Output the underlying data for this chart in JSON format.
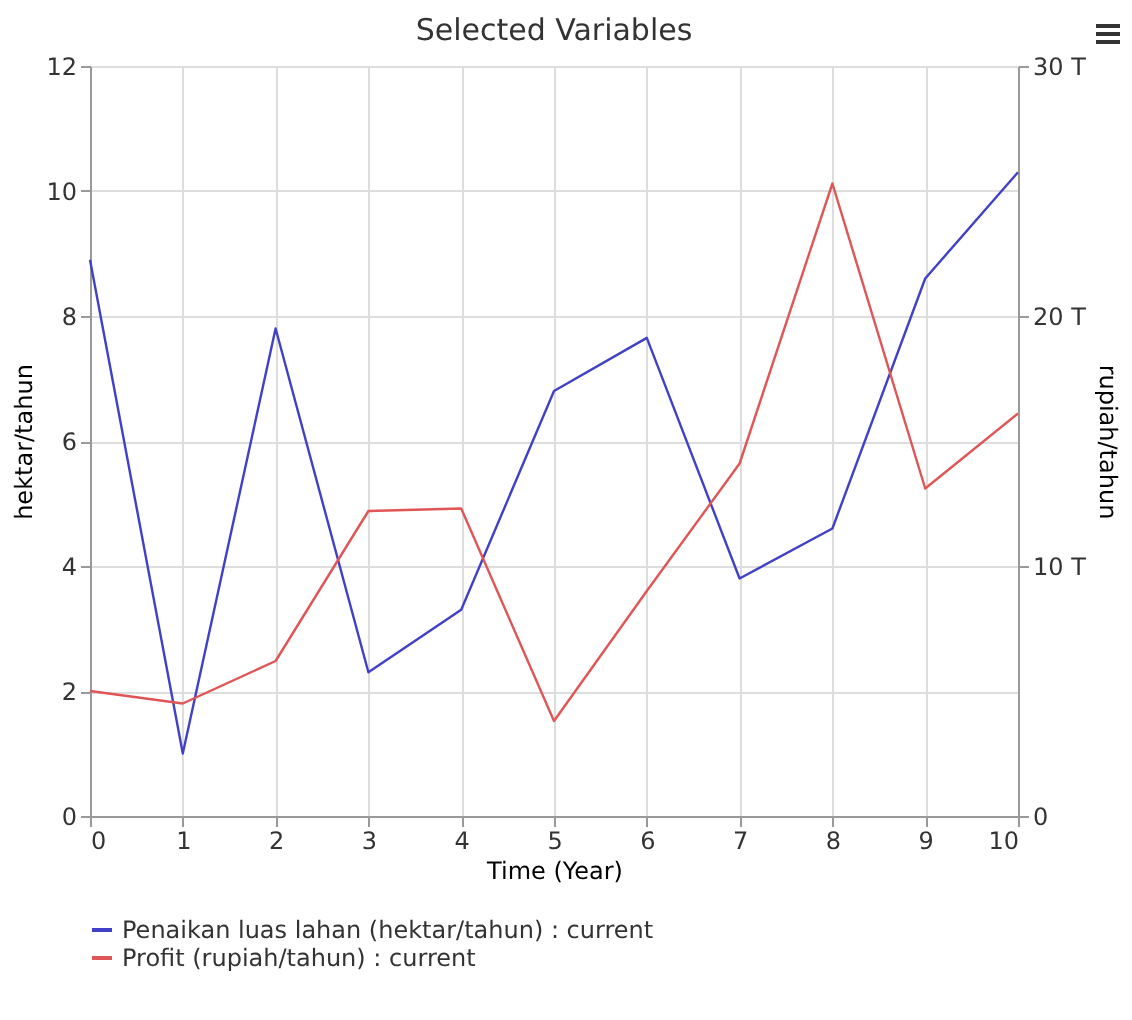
{
  "chart_data": {
    "type": "line",
    "title": "Selected Variables",
    "xlabel": "Time (Year)",
    "ylabel": "hektar/tahun",
    "y2label": "rupiah/tahun",
    "x": [
      0,
      1,
      2,
      3,
      4,
      5,
      6,
      7,
      8,
      9,
      10
    ],
    "series": [
      {
        "name": "Penaikan luas lahan (hektar/tahun) : current",
        "color": "#4040c8",
        "values": [
          8.9,
          1.0,
          7.8,
          2.3,
          3.3,
          6.8,
          7.65,
          3.8,
          4.6,
          8.6,
          10.3
        ]
      },
      {
        "name": "Profit (rupiah/tahun) : current",
        "color": "#e05555",
        "axis": "y2",
        "values": [
          5,
          4.5,
          6.2,
          12.2,
          12.3,
          3.8,
          9,
          14.1,
          25.3,
          13.1,
          16.1
        ]
      }
    ],
    "xlim": [
      0,
      10
    ],
    "xticks": [
      0,
      1,
      2,
      3,
      4,
      5,
      6,
      7,
      8,
      9,
      10
    ],
    "ylim": [
      0,
      12
    ],
    "yticks": [
      0,
      2,
      4,
      6,
      8,
      10,
      12
    ],
    "y2lim": [
      0,
      30
    ],
    "y2ticks": [
      0,
      {
        "value": 10,
        "label": "10 T"
      },
      {
        "value": 20,
        "label": "20 T"
      },
      {
        "value": 30,
        "label": "30 T"
      }
    ],
    "grid": true,
    "legend": "bottom left",
    "marker": "none",
    "line_style": "solid"
  }
}
